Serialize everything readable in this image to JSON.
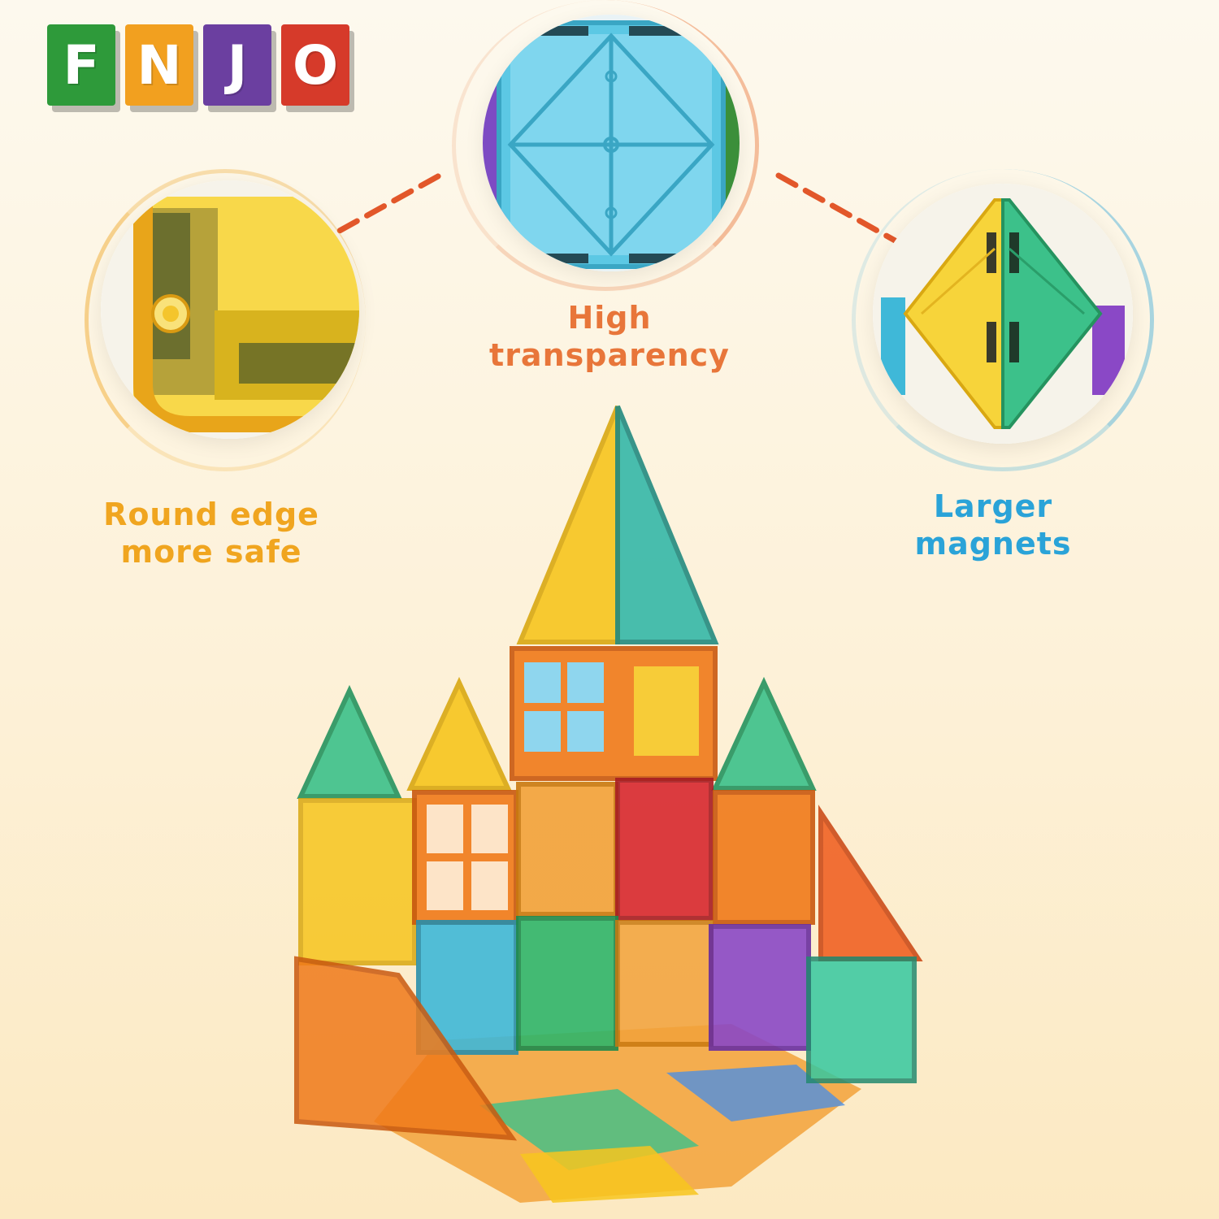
{
  "logo": {
    "letters": [
      {
        "char": "F",
        "color": "#2e9a3a"
      },
      {
        "char": "N",
        "color": "#f2a01f"
      },
      {
        "char": "J",
        "color": "#6b3fa0"
      },
      {
        "char": "O",
        "color": "#d63a2a"
      }
    ]
  },
  "features": {
    "round_edge": {
      "line1": "Round edge",
      "line2": "more safe",
      "color": "#f0a51f"
    },
    "transparency": {
      "line1": "High",
      "line2": "transparency",
      "color": "#e8763a"
    },
    "magnets": {
      "line1": "Larger",
      "line2": "magnets",
      "color": "#2aa3d8"
    }
  },
  "colors": {
    "connector": "#e2572a",
    "tile_yellow": "#f7c51e",
    "tile_orange": "#f07a1a",
    "tile_red": "#d8282f",
    "tile_green": "#2fb56a",
    "tile_blue": "#3fb8d8",
    "tile_purple": "#8a48c6"
  }
}
